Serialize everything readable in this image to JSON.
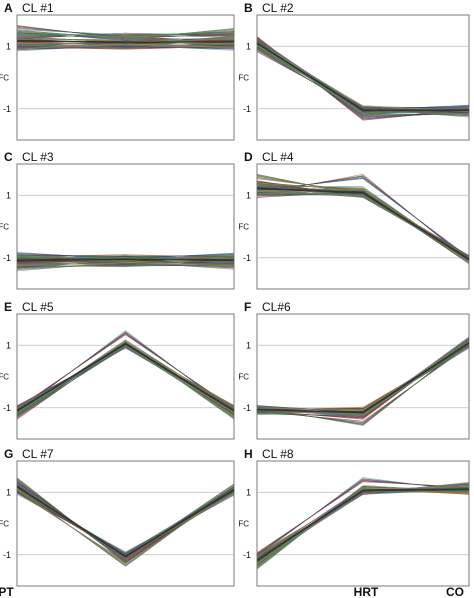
{
  "figure": {
    "x_tick_labels": [
      "PT",
      "HRT",
      "CO"
    ],
    "y_axis_label": "FC",
    "y_tick_labels": [
      "1",
      "-1"
    ],
    "trace_palette": [
      "#3c3c8c",
      "#8c3c3c",
      "#3c8c3c",
      "#a0a028",
      "#6e6e6e",
      "#3ca0a0",
      "#a05aa0",
      "#c87832",
      "#5a78b4",
      "#b45a5a",
      "#4b964b",
      "#323232"
    ]
  },
  "chart_data": [
    {
      "type": "line",
      "panel": "A",
      "title": "CL #1",
      "xlabel": "",
      "ylabel": "FC",
      "categories": [
        "PT",
        "HRT",
        "CO"
      ],
      "ylim": [
        -2,
        2
      ],
      "y_ticks": [
        1,
        -1
      ],
      "grid": true,
      "series": [
        {
          "values": [
            1.02,
            1.02,
            1.02
          ]
        },
        {
          "values": [
            1.12,
            1.05,
            1.1
          ]
        },
        {
          "values": [
            0.95,
            1.0,
            0.98
          ]
        },
        {
          "values": [
            1.25,
            1.18,
            1.15
          ]
        },
        {
          "values": [
            1.6,
            1.3,
            1.35
          ]
        },
        {
          "values": [
            1.4,
            1.25,
            1.2
          ]
        },
        {
          "values": [
            0.92,
            0.97,
            0.94
          ]
        },
        {
          "values": [
            1.3,
            1.35,
            1.4
          ]
        },
        {
          "values": [
            1.05,
            1.1,
            1.05
          ]
        },
        {
          "values": [
            1.18,
            1.12,
            1.25
          ]
        },
        {
          "values": [
            1.45,
            1.3,
            1.5
          ]
        },
        {
          "values": [
            0.98,
            1.0,
            1.02
          ]
        }
      ]
    },
    {
      "type": "line",
      "panel": "B",
      "title": "CL #2",
      "xlabel": "",
      "ylabel": "FC",
      "categories": [
        "PT",
        "HRT",
        "CO"
      ],
      "ylim": [
        -2,
        2
      ],
      "y_ticks": [
        1,
        -1
      ],
      "grid": true,
      "series": [
        {
          "values": [
            1.1,
            -1.02,
            -1.02
          ]
        },
        {
          "values": [
            1.2,
            -1.05,
            -1.05
          ]
        },
        {
          "values": [
            0.95,
            -1.0,
            -1.0
          ]
        },
        {
          "values": [
            1.05,
            -1.1,
            -1.08
          ]
        },
        {
          "values": [
            1.15,
            -1.2,
            -1.15
          ]
        },
        {
          "values": [
            1.0,
            -0.98,
            -0.95
          ]
        },
        {
          "values": [
            1.25,
            -1.3,
            -1.1
          ]
        },
        {
          "values": [
            0.9,
            -1.08,
            -1.12
          ]
        },
        {
          "values": [
            1.12,
            -1.02,
            -1.06
          ]
        },
        {
          "values": [
            1.08,
            -1.15,
            -0.98
          ]
        },
        {
          "values": [
            1.02,
            -1.05,
            -1.2
          ]
        },
        {
          "values": [
            1.18,
            -0.97,
            -1.03
          ]
        }
      ]
    },
    {
      "type": "line",
      "panel": "C",
      "title": "CL #3",
      "xlabel": "",
      "ylabel": "FC",
      "categories": [
        "PT",
        "HRT",
        "CO"
      ],
      "ylim": [
        -2,
        2
      ],
      "y_ticks": [
        1,
        -1
      ],
      "grid": true,
      "series": [
        {
          "values": [
            -1.05,
            -1.02,
            -1.05
          ]
        },
        {
          "values": [
            -1.1,
            -1.05,
            -1.08
          ]
        },
        {
          "values": [
            -0.95,
            -1.0,
            -0.97
          ]
        },
        {
          "values": [
            -1.2,
            -1.12,
            -1.15
          ]
        },
        {
          "values": [
            -1.35,
            -1.2,
            -1.3
          ]
        },
        {
          "values": [
            -0.9,
            -0.97,
            -0.92
          ]
        },
        {
          "values": [
            -1.15,
            -1.08,
            -1.2
          ]
        },
        {
          "values": [
            -1.0,
            -1.04,
            -1.0
          ]
        },
        {
          "values": [
            -1.25,
            -1.15,
            -1.1
          ]
        },
        {
          "values": [
            -1.08,
            -1.1,
            -1.25
          ]
        },
        {
          "values": [
            -0.98,
            -1.0,
            -1.02
          ]
        },
        {
          "values": [
            -1.3,
            -1.22,
            -1.2
          ]
        }
      ]
    },
    {
      "type": "line",
      "panel": "D",
      "title": "CL #4",
      "xlabel": "",
      "ylabel": "FC",
      "categories": [
        "PT",
        "HRT",
        "CO"
      ],
      "ylim": [
        -2,
        2
      ],
      "y_ticks": [
        1,
        -1
      ],
      "grid": true,
      "series": [
        {
          "values": [
            1.15,
            1.05,
            -1.05
          ]
        },
        {
          "values": [
            1.2,
            1.08,
            -1.0
          ]
        },
        {
          "values": [
            1.05,
            1.02,
            -1.1
          ]
        },
        {
          "values": [
            1.3,
            1.1,
            -1.02
          ]
        },
        {
          "values": [
            1.4,
            1.0,
            -1.08
          ]
        },
        {
          "values": [
            1.1,
            1.6,
            -1.05
          ]
        },
        {
          "values": [
            1.25,
            1.15,
            -1.0
          ]
        },
        {
          "values": [
            1.0,
            1.05,
            -1.12
          ]
        },
        {
          "values": [
            1.35,
            1.2,
            -1.05
          ]
        },
        {
          "values": [
            1.6,
            1.05,
            -1.0
          ]
        },
        {
          "values": [
            1.12,
            1.0,
            -1.06
          ]
        },
        {
          "values": [
            1.22,
            1.12,
            -1.08
          ]
        }
      ]
    },
    {
      "type": "line",
      "panel": "E",
      "title": "CL #5",
      "xlabel": "",
      "ylabel": "FC",
      "categories": [
        "PT",
        "HRT",
        "CO"
      ],
      "ylim": [
        -2,
        2
      ],
      "y_ticks": [
        1,
        -1
      ],
      "grid": true,
      "series": [
        {
          "values": [
            -1.1,
            1.05,
            -1.1
          ]
        },
        {
          "values": [
            -1.05,
            1.0,
            -1.05
          ]
        },
        {
          "values": [
            -1.2,
            1.02,
            -1.15
          ]
        },
        {
          "values": [
            -1.15,
            1.08,
            -1.2
          ]
        },
        {
          "values": [
            -1.0,
            1.0,
            -1.0
          ]
        },
        {
          "values": [
            -1.25,
            1.05,
            -1.12
          ]
        },
        {
          "values": [
            -1.08,
            1.4,
            -1.08
          ]
        },
        {
          "values": [
            -1.3,
            1.0,
            -1.25
          ]
        },
        {
          "values": [
            -1.12,
            1.1,
            -1.0
          ]
        },
        {
          "values": [
            -1.02,
            0.98,
            -1.15
          ]
        },
        {
          "values": [
            -1.18,
            1.03,
            -1.3
          ]
        },
        {
          "values": [
            -1.06,
            1.05,
            -1.05
          ]
        }
      ]
    },
    {
      "type": "line",
      "panel": "F",
      "title": "CL#6",
      "xlabel": "",
      "ylabel": "FC",
      "categories": [
        "PT",
        "HRT",
        "CO"
      ],
      "ylim": [
        -2,
        2
      ],
      "y_ticks": [
        1,
        -1
      ],
      "grid": true,
      "series": [
        {
          "values": [
            -1.05,
            -1.15,
            1.05
          ]
        },
        {
          "values": [
            -1.1,
            -1.2,
            1.1
          ]
        },
        {
          "values": [
            -1.0,
            -1.1,
            1.0
          ]
        },
        {
          "values": [
            -1.08,
            -1.25,
            1.08
          ]
        },
        {
          "values": [
            -1.12,
            -1.12,
            1.15
          ]
        },
        {
          "values": [
            -1.02,
            -1.05,
            1.02
          ]
        },
        {
          "values": [
            -1.15,
            -1.3,
            1.12
          ]
        },
        {
          "values": [
            -1.05,
            -1.5,
            1.05
          ]
        },
        {
          "values": [
            -1.1,
            -1.18,
            0.98
          ]
        },
        {
          "values": [
            -1.0,
            -1.08,
            1.1
          ]
        },
        {
          "values": [
            -1.06,
            -1.22,
            1.06
          ]
        },
        {
          "values": [
            -1.14,
            -1.15,
            1.2
          ]
        }
      ]
    },
    {
      "type": "line",
      "panel": "G",
      "title": "CL #7",
      "xlabel": "",
      "ylabel": "FC",
      "categories": [
        "PT",
        "HRT",
        "CO"
      ],
      "ylim": [
        -2,
        2
      ],
      "y_ticks": [
        1,
        -1
      ],
      "grid": true,
      "series": [
        {
          "values": [
            1.1,
            -1.0,
            1.05
          ]
        },
        {
          "values": [
            1.2,
            -1.05,
            1.1
          ]
        },
        {
          "values": [
            1.05,
            -0.98,
            1.0
          ]
        },
        {
          "values": [
            1.3,
            -1.1,
            1.15
          ]
        },
        {
          "values": [
            1.15,
            -1.02,
            1.08
          ]
        },
        {
          "values": [
            1.25,
            -1.15,
            1.02
          ]
        },
        {
          "values": [
            1.0,
            -1.0,
            1.12
          ]
        },
        {
          "values": [
            1.4,
            -1.2,
            1.05
          ]
        },
        {
          "values": [
            1.12,
            -1.05,
            0.98
          ]
        },
        {
          "values": [
            1.08,
            -1.3,
            1.1
          ]
        },
        {
          "values": [
            1.18,
            -1.02,
            1.2
          ]
        },
        {
          "values": [
            1.22,
            -1.08,
            1.04
          ]
        }
      ]
    },
    {
      "type": "line",
      "panel": "H",
      "title": "CL #8",
      "xlabel": "",
      "ylabel": "FC",
      "categories": [
        "PT",
        "HRT",
        "CO"
      ],
      "ylim": [
        -2,
        2
      ],
      "y_ticks": [
        1,
        -1
      ],
      "grid": true,
      "series": [
        {
          "values": [
            -1.1,
            1.05,
            1.05
          ]
        },
        {
          "values": [
            -1.2,
            1.02,
            1.1
          ]
        },
        {
          "values": [
            -1.05,
            1.1,
            1.08
          ]
        },
        {
          "values": [
            -1.3,
            1.0,
            1.02
          ]
        },
        {
          "values": [
            -1.15,
            1.08,
            1.15
          ]
        },
        {
          "values": [
            -1.25,
            1.05,
            1.12
          ]
        },
        {
          "values": [
            -1.0,
            1.4,
            1.1
          ]
        },
        {
          "values": [
            -1.35,
            1.12,
            1.05
          ]
        },
        {
          "values": [
            -1.08,
            1.0,
            1.2
          ]
        },
        {
          "values": [
            -1.18,
            1.06,
            1.0
          ]
        },
        {
          "values": [
            -1.4,
            1.15,
            1.08
          ]
        },
        {
          "values": [
            -1.22,
            1.03,
            1.25
          ]
        }
      ]
    }
  ]
}
